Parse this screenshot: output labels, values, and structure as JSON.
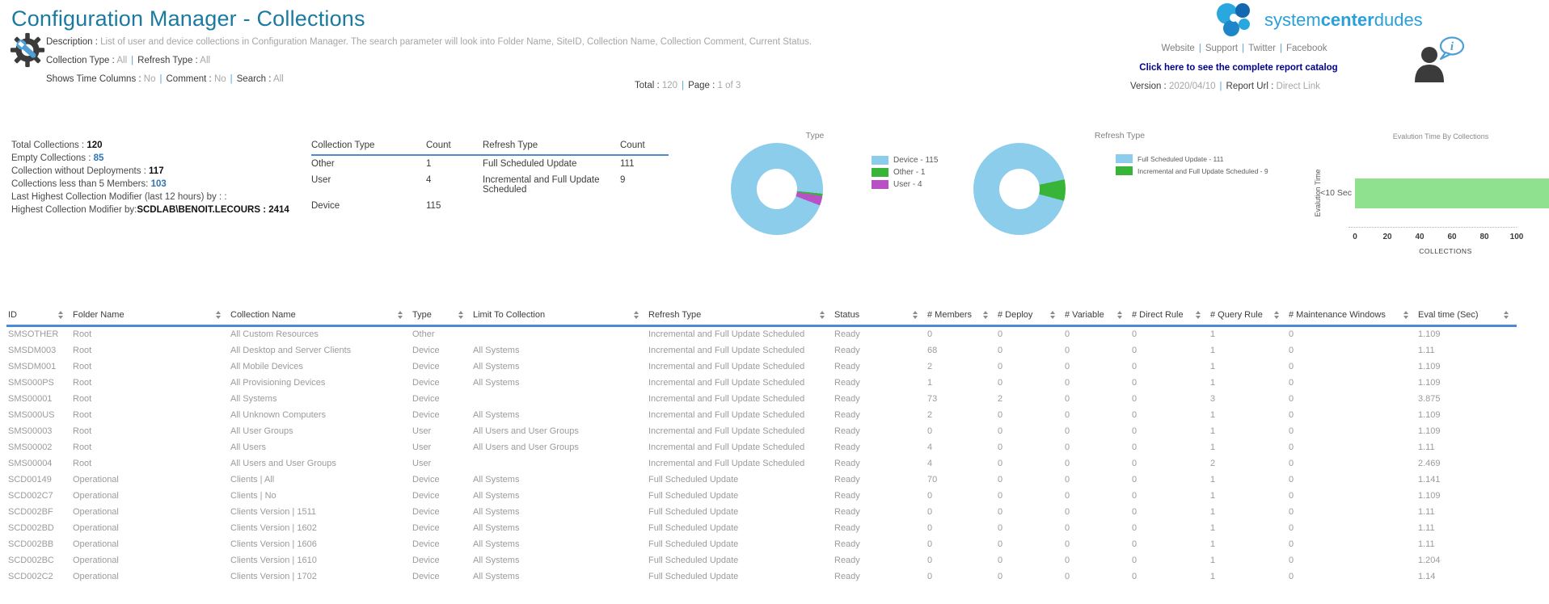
{
  "page": {
    "title": "Configuration Manager - Collections"
  },
  "header": {
    "description": [
      {
        "label": "Description : ",
        "value": "List of user and device collections in Configuration Manager. The search parameter will look into Folder Name, SiteID, Collection Name, Collection Comment, Current Status."
      }
    ],
    "params_line1": [
      {
        "label": "Collection Type : ",
        "value": "All"
      },
      {
        "label": "Refresh Type : ",
        "value": "All"
      }
    ],
    "params_line2": [
      {
        "label": "Shows Time Columns : ",
        "value": "No"
      },
      {
        "label": "Comment : ",
        "value": "No"
      },
      {
        "label": "Search : ",
        "value": "All"
      }
    ],
    "total_pairs": [
      {
        "label": "Total : ",
        "value": "120"
      },
      {
        "label": "Page : ",
        "value": "1 of 3"
      }
    ]
  },
  "brand": {
    "logo": {
      "part1": "system",
      "part2": "center",
      "part3": "dudes"
    },
    "links": [
      "Website",
      "Support",
      "Twitter",
      "Facebook"
    ],
    "catalog_link": "Click here to see the complete report catalog",
    "version_pairs": [
      {
        "label": "Version : ",
        "value": "2020/04/10"
      },
      {
        "label": "Report Url : ",
        "value": "Direct Link",
        "interactable": true
      }
    ]
  },
  "summary": {
    "lines": [
      {
        "label": "Total Collections : ",
        "value": "120",
        "style": "bold"
      },
      {
        "label": "Empty Collections :  ",
        "value": "85",
        "style": "blue"
      },
      {
        "label": "Collection without Deployments : ",
        "value": "117",
        "style": "bold"
      },
      {
        "label": "Collections less than 5 Members: ",
        "value": "103",
        "style": "blue"
      },
      {
        "label": "Last Highest Collection Modifier (last 12 hours) by :  :",
        "value": "",
        "style": "plain"
      },
      {
        "label": "Highest Collection Modifier by:",
        "value": "SCDLAB\\BENOIT.LECOURS : 2414",
        "style": "bold"
      }
    ]
  },
  "summary_table": {
    "headers": [
      "Collection Type",
      "Count",
      "Refresh Type",
      "Count"
    ],
    "rows": [
      [
        "Other",
        "1",
        "Full Scheduled Update",
        "111"
      ],
      [
        "User",
        "4",
        "Incremental and Full Update Scheduled",
        "9"
      ],
      [
        "Device",
        "115",
        "",
        ""
      ]
    ]
  },
  "chart_data": [
    {
      "type": "donut",
      "title": "Type",
      "legend_position": "right",
      "slices": [
        {
          "label": "Device - 115",
          "name": "Device",
          "value": 115,
          "color": "#8CCDEB"
        },
        {
          "label": "Other - 1",
          "name": "Other",
          "value": 1,
          "color": "#38B438"
        },
        {
          "label": "User - 4",
          "name": "User",
          "value": 4,
          "color": "#BA50C6"
        }
      ]
    },
    {
      "type": "donut",
      "title": "Refresh Type",
      "legend_position": "right",
      "slices": [
        {
          "label": "Full Scheduled Update - 111",
          "name": "Full Scheduled Update",
          "value": 111,
          "color": "#8CCDEB"
        },
        {
          "label": "Incremental and Full Update Scheduled - 9",
          "name": "Incremental and Full Update Scheduled",
          "value": 9,
          "color": "#38B438"
        }
      ]
    },
    {
      "type": "bar",
      "orientation": "horizontal",
      "title": "Evalution Time By Collections",
      "categories": [
        "<10 Sec"
      ],
      "values": [
        120
      ],
      "xlabel": "COLLECTIONS",
      "ylabel": "Evalution Time",
      "xticks": [
        0,
        20,
        40,
        60,
        80,
        100
      ],
      "xlim": [
        0,
        100
      ],
      "bar_color": "#8FE08F",
      "note": "Bar is clipped by the right edge of the image; visible extent is > 100, estimated total 120."
    }
  ],
  "table": {
    "columns": [
      "ID",
      "Folder Name",
      "Collection Name",
      "Type",
      "Limit To Collection",
      "Refresh Type",
      "Status",
      "# Members",
      "# Deploy",
      "# Variable",
      "# Direct Rule",
      "# Query Rule",
      "# Maintenance Windows",
      "Eval time (Sec)"
    ],
    "rows": [
      [
        "SMSOTHER",
        "Root",
        "All Custom Resources",
        "Other",
        "",
        "Incremental and Full Update Scheduled",
        "Ready",
        "0",
        "0",
        "0",
        "0",
        "1",
        "0",
        "1.109"
      ],
      [
        "SMSDM003",
        "Root",
        "All Desktop and Server Clients",
        "Device",
        "All Systems",
        "Incremental and Full Update Scheduled",
        "Ready",
        "68",
        "0",
        "0",
        "0",
        "1",
        "0",
        "1.11"
      ],
      [
        "SMSDM001",
        "Root",
        "All Mobile Devices",
        "Device",
        "All Systems",
        "Incremental and Full Update Scheduled",
        "Ready",
        "2",
        "0",
        "0",
        "0",
        "1",
        "0",
        "1.109"
      ],
      [
        "SMS000PS",
        "Root",
        "All Provisioning Devices",
        "Device",
        "All Systems",
        "Incremental and Full Update Scheduled",
        "Ready",
        "1",
        "0",
        "0",
        "0",
        "1",
        "0",
        "1.109"
      ],
      [
        "SMS00001",
        "Root",
        "All Systems",
        "Device",
        "",
        "Incremental and Full Update Scheduled",
        "Ready",
        "73",
        "2",
        "0",
        "0",
        "3",
        "0",
        "3.875"
      ],
      [
        "SMS000US",
        "Root",
        "All Unknown Computers",
        "Device",
        "All Systems",
        "Incremental and Full Update Scheduled",
        "Ready",
        "2",
        "0",
        "0",
        "0",
        "1",
        "0",
        "1.109"
      ],
      [
        "SMS00003",
        "Root",
        "All User Groups",
        "User",
        "All Users and User Groups",
        "Incremental and Full Update Scheduled",
        "Ready",
        "0",
        "0",
        "0",
        "0",
        "1",
        "0",
        "1.109"
      ],
      [
        "SMS00002",
        "Root",
        "All Users",
        "User",
        "All Users and User Groups",
        "Incremental and Full Update Scheduled",
        "Ready",
        "4",
        "0",
        "0",
        "0",
        "1",
        "0",
        "1.11"
      ],
      [
        "SMS00004",
        "Root",
        "All Users and User Groups",
        "User",
        "",
        "Incremental and Full Update Scheduled",
        "Ready",
        "4",
        "0",
        "0",
        "0",
        "2",
        "0",
        "2.469"
      ],
      [
        "SCD00149",
        "Operational",
        "Clients | All",
        "Device",
        "All Systems",
        "Full Scheduled Update",
        "Ready",
        "70",
        "0",
        "0",
        "0",
        "1",
        "0",
        "1.141"
      ],
      [
        "SCD002C7",
        "Operational",
        "Clients | No",
        "Device",
        "All Systems",
        "Full Scheduled Update",
        "Ready",
        "0",
        "0",
        "0",
        "0",
        "1",
        "0",
        "1.109"
      ],
      [
        "SCD002BF",
        "Operational",
        "Clients Version | 1511",
        "Device",
        "All Systems",
        "Full Scheduled Update",
        "Ready",
        "0",
        "0",
        "0",
        "0",
        "1",
        "0",
        "1.11"
      ],
      [
        "SCD002BD",
        "Operational",
        "Clients Version | 1602",
        "Device",
        "All Systems",
        "Full Scheduled Update",
        "Ready",
        "0",
        "0",
        "0",
        "0",
        "1",
        "0",
        "1.11"
      ],
      [
        "SCD002BB",
        "Operational",
        "Clients Version | 1606",
        "Device",
        "All Systems",
        "Full Scheduled Update",
        "Ready",
        "0",
        "0",
        "0",
        "0",
        "1",
        "0",
        "1.11"
      ],
      [
        "SCD002BC",
        "Operational",
        "Clients Version | 1610",
        "Device",
        "All Systems",
        "Full Scheduled Update",
        "Ready",
        "0",
        "0",
        "0",
        "0",
        "1",
        "0",
        "1.204"
      ],
      [
        "SCD002C2",
        "Operational",
        "Clients Version | 1702",
        "Device",
        "All Systems",
        "Full Scheduled Update",
        "Ready",
        "0",
        "0",
        "0",
        "0",
        "1",
        "0",
        "1.14"
      ]
    ]
  },
  "colors": {
    "title": "#1B7AA0",
    "accent_blue_line": "#4B8BD4",
    "pipe_blue": "#4FA3DC",
    "stat_blue": "#2E74B5",
    "link_navy": "#00008B",
    "brand_blue": "#2AA0DB",
    "donut_blue": "#8CCDEB",
    "donut_green": "#38B438",
    "donut_purple": "#BA50C6",
    "bar_green": "#8FE08F"
  }
}
